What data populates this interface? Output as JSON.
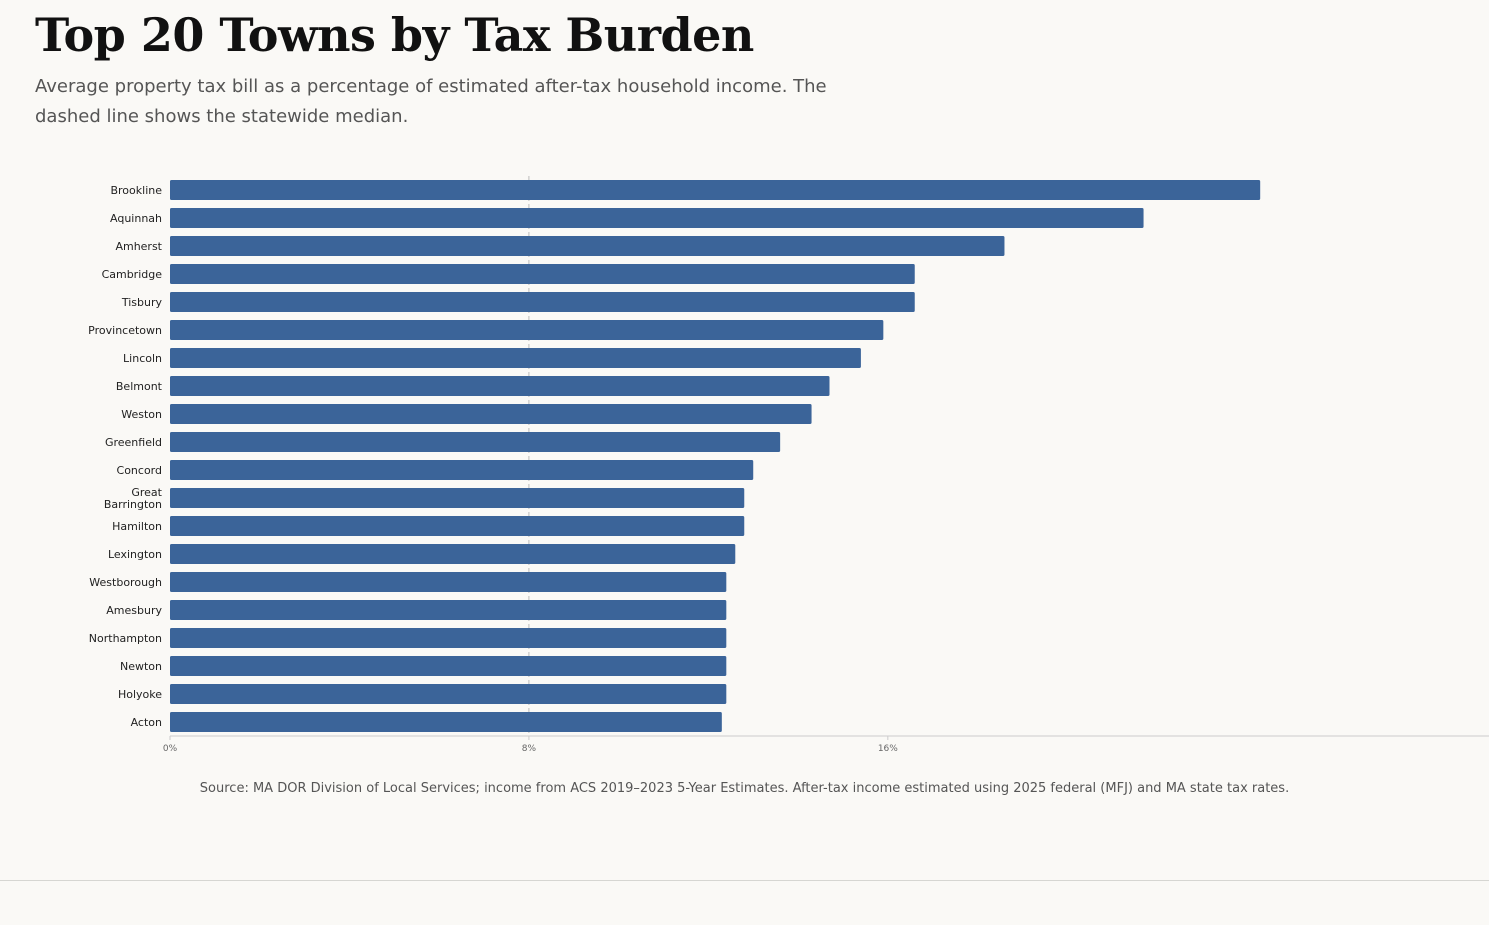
{
  "header": {
    "title": "Top 20 Towns by Tax Burden",
    "subtitle": "Average property tax bill as a percentage of estimated after-tax household income. The dashed line shows the statewide median."
  },
  "footer": {
    "source": "Source: MA DOR Division of Local Services; income from ACS 2019–2023 5-Year Estimates. After-tax income estimated using 2025 federal (MFJ) and MA state tax rates."
  },
  "colors": {
    "bar": "#3b6499",
    "median_line": "#bbbbbb",
    "axis": "#cccccc",
    "background": "#faf9f6"
  },
  "chart_data": {
    "type": "bar",
    "orientation": "horizontal",
    "categories": [
      "Brookline",
      "Aquinnah",
      "Amherst",
      "Cambridge",
      "Tisbury",
      "Provincetown",
      "Lincoln",
      "Belmont",
      "Weston",
      "Greenfield",
      "Concord",
      "Great Barrington",
      "Hamilton",
      "Lexington",
      "Westborough",
      "Amesbury",
      "Northampton",
      "Newton",
      "Holyoke",
      "Acton"
    ],
    "values": [
      24.3,
      21.7,
      18.6,
      16.6,
      16.6,
      15.9,
      15.4,
      14.7,
      14.3,
      13.6,
      13.0,
      12.8,
      12.8,
      12.6,
      12.4,
      12.4,
      12.4,
      12.4,
      12.4,
      12.3
    ],
    "median": 8.0,
    "xticks": [
      "0%",
      "8%",
      "16%"
    ],
    "xtick_values": [
      0,
      8,
      16
    ],
    "xlim": [
      0,
      29.4
    ],
    "grid": false,
    "legend": "none"
  }
}
